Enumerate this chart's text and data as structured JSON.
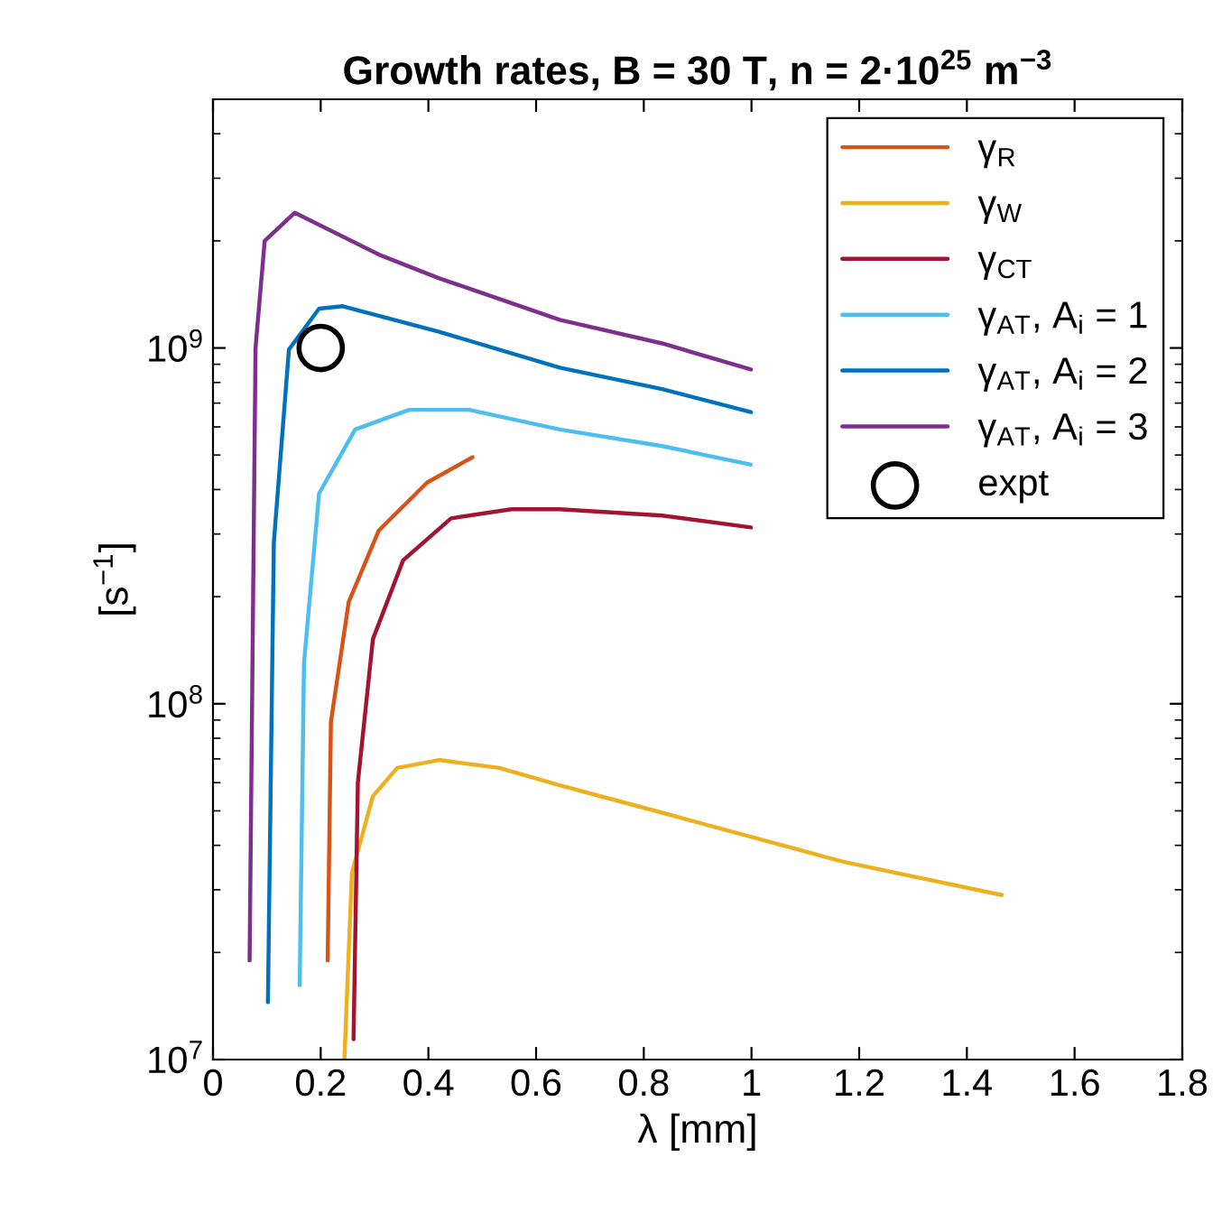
{
  "chart_data": {
    "type": "line",
    "title": "Growth rates, B = 30 T, n = 2·10$^{25}$ m$^{−3}$",
    "xlabel": "λ [mm]",
    "ylabel": "[s$^{−1}$]",
    "log": "y",
    "grid": false,
    "legend": "top right",
    "xlim": [
      0,
      1.8
    ],
    "xticks": [
      0,
      0.2,
      0.4,
      0.6,
      0.8,
      1,
      1.2,
      1.4,
      1.6,
      1.8
    ],
    "ylim": [
      10000000.0,
      5000000000.0
    ],
    "yticks": [
      {
        "value": 10000000.0,
        "label": "10$^{7}$"
      },
      {
        "value": 100000000.0,
        "label": "10$^{8}$"
      },
      {
        "value": 1000000000.0,
        "label": "10$^{9}$"
      }
    ],
    "series": [
      {
        "name": "γ$_{R}$",
        "color": "#d95319",
        "x": [
          0.213,
          0.219,
          0.252,
          0.308,
          0.398,
          0.482
        ],
        "values": [
          19000000.0,
          89000000.0,
          193000000.0,
          307000000.0,
          419000000.0,
          493000000.0
        ]
      },
      {
        "name": "γ$_{W}$",
        "color": "#edb120",
        "x": [
          0.244,
          0.258,
          0.297,
          0.342,
          0.42,
          0.532,
          0.644,
          0.834,
          1.169,
          1.465
        ],
        "values": [
          10000000.0,
          33500000.0,
          55000000.0,
          66000000.0,
          69500000.0,
          66000000.0,
          59000000.0,
          49400000.0,
          36000000.0,
          29000000.0
        ]
      },
      {
        "name": "γ$_{CT}$",
        "color": "#a2142f",
        "x": [
          0.261,
          0.269,
          0.297,
          0.353,
          0.442,
          0.554,
          0.644,
          0.834,
          0.999
        ],
        "values": [
          11400000.0,
          60000000.0,
          152000000.0,
          253000000.0,
          332000000.0,
          352000000.0,
          352000000.0,
          338000000.0,
          313000000.0
        ]
      },
      {
        "name": "γ$_{AT}$, A$_{i}$ = 1",
        "color": "#4dbeee",
        "x": [
          0.161,
          0.169,
          0.197,
          0.264,
          0.364,
          0.476,
          0.644,
          0.834,
          0.999
        ],
        "values": [
          16200000.0,
          130000000.0,
          390000000.0,
          590000000.0,
          670000000.0,
          670000000.0,
          590000000.0,
          530000000.0,
          470000000.0
        ]
      },
      {
        "name": "γ$_{AT}$, A$_{i}$ = 2",
        "color": "#0072bd",
        "x": [
          0.102,
          0.113,
          0.141,
          0.197,
          0.241,
          0.42,
          0.644,
          0.834,
          0.999
        ],
        "values": [
          14500000.0,
          284000000.0,
          990000000.0,
          1290000000.0,
          1310000000.0,
          1110000000.0,
          880000000.0,
          766000000.0,
          660000000.0
        ]
      },
      {
        "name": "γ$_{AT}$, A$_{i}$ = 3",
        "color": "#7e2f8e",
        "x": [
          0.068,
          0.079,
          0.096,
          0.152,
          0.308,
          0.42,
          0.644,
          0.834,
          0.999
        ],
        "values": [
          19000000.0,
          1000000000.0,
          2000000000.0,
          2400000000.0,
          1830000000.0,
          1570000000.0,
          1200000000.0,
          1030000000.0,
          870000000.0
        ]
      },
      {
        "name": "expt",
        "type": "scatter",
        "marker": "circle",
        "color": "#000000",
        "x": [
          0.2
        ],
        "values": [
          1000000000.0
        ]
      }
    ]
  }
}
